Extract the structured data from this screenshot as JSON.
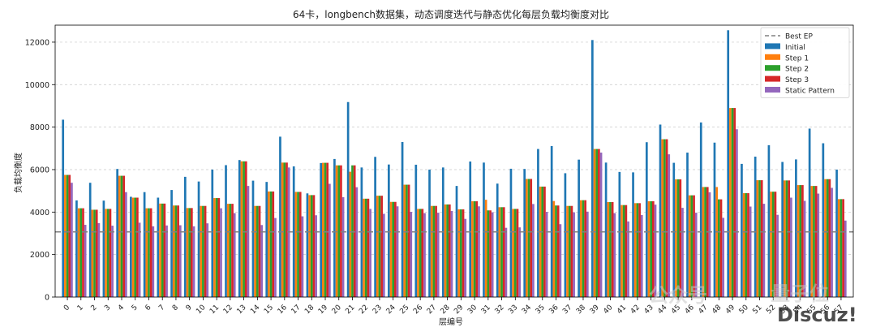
{
  "chart_data": {
    "type": "bar",
    "title": "64卡，longbench数据集，动态调度迭代与静态优化每层负载均衡度对比",
    "xlabel": "层编号",
    "ylabel": "负载均衡度",
    "ylim": [
      0,
      12800
    ],
    "yticks": [
      0,
      2000,
      4000,
      6000,
      8000,
      10000,
      12000
    ],
    "grid": true,
    "legend_position": "top-right",
    "categories": [
      "0",
      "1",
      "2",
      "3",
      "4",
      "5",
      "6",
      "7",
      "8",
      "9",
      "10",
      "11",
      "12",
      "13",
      "14",
      "15",
      "16",
      "17",
      "18",
      "19",
      "20",
      "21",
      "22",
      "23",
      "24",
      "25",
      "26",
      "27",
      "28",
      "29",
      "30",
      "31",
      "32",
      "33",
      "34",
      "35",
      "36",
      "37",
      "38",
      "39",
      "40",
      "41",
      "42",
      "43",
      "44",
      "45",
      "46",
      "47",
      "48",
      "49",
      "50",
      "51",
      "52",
      "53",
      "54",
      "55",
      "56",
      "57"
    ],
    "reference_line": {
      "name": "Best EP",
      "value": 3070,
      "color": "#808080"
    },
    "series": [
      {
        "name": "Initial",
        "color": "#1f77b4",
        "values": [
          8350,
          4550,
          5380,
          4540,
          6030,
          4720,
          4940,
          4680,
          5040,
          5660,
          5440,
          6000,
          6210,
          6450,
          5480,
          5420,
          7550,
          6150,
          4880,
          6310,
          6500,
          9180,
          6100,
          6600,
          6240,
          7300,
          6230,
          6000,
          6100,
          5230,
          6380,
          6330,
          5340,
          6040,
          6030,
          6970,
          7110,
          5830,
          6470,
          12100,
          6330,
          5890,
          5870,
          7290,
          8120,
          6320,
          6800,
          8220,
          7270,
          12560,
          6270,
          6610,
          7150,
          6360,
          6480,
          7930,
          7240,
          6000
        ]
      },
      {
        "name": "Step 1",
        "color": "#ff7f0e",
        "values": [
          5750,
          4180,
          4110,
          4150,
          5710,
          4680,
          4180,
          4400,
          4310,
          4190,
          4290,
          4660,
          4390,
          6390,
          4290,
          4970,
          6330,
          4950,
          4800,
          6320,
          6200,
          5900,
          4630,
          4770,
          4480,
          5290,
          4150,
          4290,
          4360,
          4130,
          4510,
          4580,
          4230,
          4150,
          5560,
          5200,
          4520,
          4290,
          4560,
          6970,
          4470,
          4330,
          4420,
          4510,
          7430,
          5540,
          4790,
          5180,
          5180,
          8900,
          4890,
          5500,
          4960,
          5490,
          5270,
          5230,
          5550,
          4610
        ]
      },
      {
        "name": "Step 2",
        "color": "#2ca02c",
        "values": [
          5750,
          4180,
          4110,
          4150,
          5710,
          4680,
          4180,
          4400,
          4310,
          4190,
          4290,
          4660,
          4390,
          6390,
          4290,
          4970,
          6330,
          4950,
          4800,
          6320,
          6200,
          6200,
          4630,
          4770,
          4480,
          5290,
          4150,
          4290,
          4360,
          4130,
          4510,
          4080,
          4230,
          4150,
          5560,
          5200,
          4310,
          4290,
          4560,
          6970,
          4470,
          4330,
          4420,
          4510,
          7430,
          5540,
          4790,
          5180,
          4600,
          8900,
          4890,
          5500,
          4960,
          5490,
          5270,
          5230,
          5550,
          4610
        ]
      },
      {
        "name": "Step 3",
        "color": "#d62728",
        "values": [
          5750,
          4180,
          4110,
          4150,
          5710,
          4680,
          4180,
          4400,
          4310,
          4190,
          4290,
          4660,
          4390,
          6390,
          4290,
          4970,
          6330,
          4950,
          4800,
          6320,
          6200,
          6200,
          4630,
          4770,
          4480,
          5290,
          4150,
          4290,
          4360,
          4130,
          4510,
          4080,
          4230,
          4150,
          5560,
          5200,
          4310,
          4290,
          4560,
          6970,
          4470,
          4330,
          4420,
          4510,
          7430,
          5540,
          4790,
          5180,
          4600,
          8900,
          4890,
          5500,
          4960,
          5490,
          5270,
          5230,
          5550,
          4610
        ]
      },
      {
        "name": "Static Pattern",
        "color": "#9467bd",
        "values": [
          5380,
          3400,
          3480,
          3360,
          4940,
          3500,
          3330,
          3370,
          3380,
          3330,
          3470,
          4180,
          3950,
          5230,
          3390,
          3720,
          6100,
          3800,
          3850,
          5330,
          4700,
          5170,
          4150,
          3920,
          4270,
          4010,
          3950,
          3970,
          4050,
          3680,
          4270,
          3990,
          3260,
          3280,
          4380,
          4010,
          3430,
          3990,
          4020,
          6800,
          3950,
          3560,
          3860,
          4350,
          6720,
          4200,
          3970,
          4930,
          3730,
          7900,
          4260,
          4390,
          3870,
          4680,
          4530,
          4870,
          5140,
          3600
        ]
      }
    ]
  },
  "watermark": {
    "account": "公众号",
    "name": "量子位",
    "site": "Discuz!"
  }
}
